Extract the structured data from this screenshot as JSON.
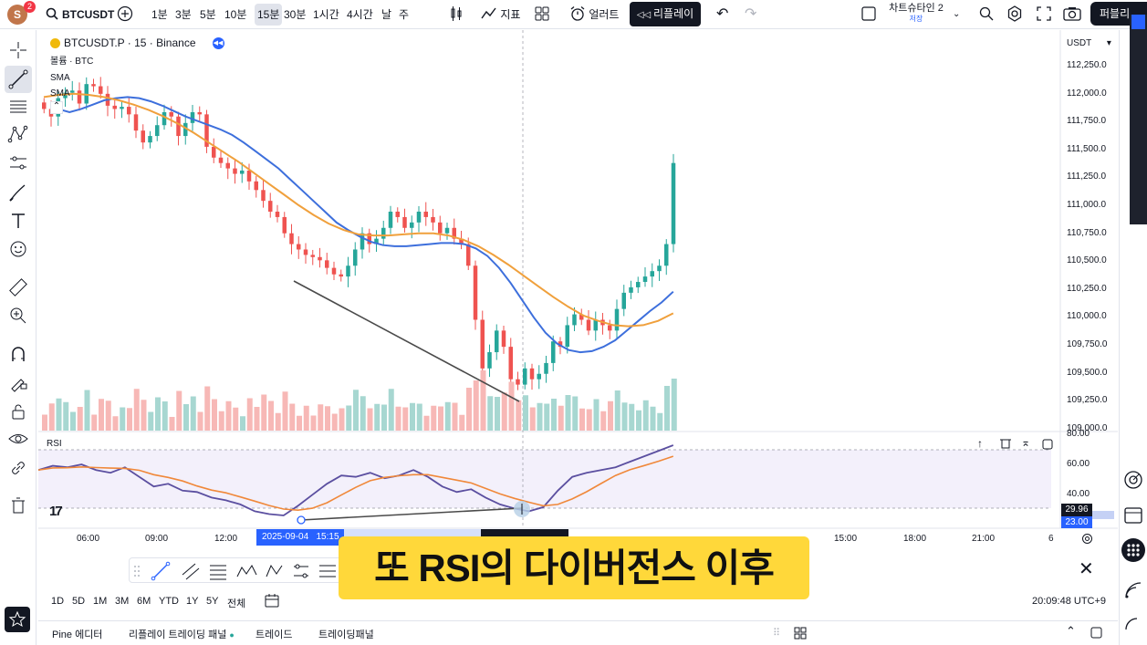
{
  "header": {
    "avatar_letter": "S",
    "notification_count": "2",
    "symbol": "BTCUSDT",
    "intervals": [
      "1분",
      "3분",
      "5분",
      "10분",
      "15분",
      "30분",
      "1시간",
      "4시간",
      "날",
      "주"
    ],
    "selected_interval": "15분",
    "indicators_label": "지표",
    "alert_label": "얼러트",
    "replay_label": "리플레이",
    "layout_name": "차트슈타인 2",
    "layout_sub": "저장",
    "publish_label": "퍼블리"
  },
  "chart": {
    "title": "BTCUSDT.P · 15 · Binance",
    "volume_legend": "볼륨 · BTC",
    "sma1_legend": "SMA",
    "sma2_legend": "SMA",
    "currency": "USDT",
    "price_ticks": [
      "112,250.0",
      "112,000.0",
      "111,750.0",
      "111,500.0",
      "111,250.0",
      "111,000.0",
      "110,750.0",
      "110,500.0",
      "110,250.0",
      "110,000.0",
      "109,750.0",
      "109,500.0",
      "109,250.0",
      "109,000.0"
    ],
    "rsi_label": "RSI",
    "rsi_ticks": [
      "80.00",
      "60.00",
      "40.00"
    ],
    "rsi_value": "29.96",
    "rsi_low": "23.00",
    "time_labels": [
      "06:00",
      "09:00",
      "12:00",
      "15:00",
      "18:00",
      "21:00",
      "6"
    ],
    "cursor_date": "2025-09-04",
    "cursor_time": "15:15",
    "accent_blue": "#2962ff",
    "bull_color": "#26a69a",
    "bear_color": "#ef5350",
    "sma_fast_color": "#3d6fdc",
    "sma_slow_color": "#f0a03c",
    "rsi_line_color": "#5b4fa0",
    "rsi_ma_color": "#f0883a"
  },
  "ranges": [
    "1D",
    "5D",
    "1M",
    "3M",
    "6M",
    "YTD",
    "1Y",
    "5Y",
    "전체"
  ],
  "clock": "20:09:48 UTC+9",
  "bottom": {
    "pine": "Pine 에디터",
    "replay_panel": "리플레이 트레이딩 패널",
    "trade": "트레이드",
    "trading_panel": "트레이딩패널"
  },
  "subtitle": "또 RSI의 다이버전스 이후",
  "chart_data": {
    "type": "candlestick",
    "symbol": "BTCUSDT.P",
    "interval": "15",
    "exchange": "Binance",
    "ylim": [
      109000,
      112300
    ],
    "rsi_ylim": [
      23,
      80
    ],
    "ohlc_close": [
      111950,
      111880,
      112050,
      112100,
      112120,
      112000,
      112180,
      112160,
      112090,
      111980,
      111950,
      111970,
      111900,
      111750,
      111640,
      111700,
      111800,
      111920,
      111880,
      111700,
      111820,
      111920,
      111900,
      111600,
      111500,
      111450,
      111400,
      111350,
      111380,
      111280,
      111200,
      111100,
      111000,
      110950,
      110800,
      110700,
      110650,
      110600,
      110580,
      110550,
      110480,
      110420,
      110400,
      110500,
      110650,
      110800,
      110700,
      110750,
      110850,
      111000,
      110950,
      110850,
      110900,
      111000,
      110950,
      110900,
      110800,
      110850,
      110750,
      110700,
      110500,
      110000,
      109550,
      109700,
      109900,
      109750,
      109450,
      109400,
      109550,
      109450,
      109500,
      109600,
      109800,
      109750,
      109950,
      110050,
      110000,
      109900,
      110000,
      109950,
      109900,
      110100,
      110250,
      110300,
      110350,
      110400,
      110450,
      110500,
      110700,
      111450
    ],
    "sma_fast": [
      111950,
      111920,
      111950,
      111990,
      112030,
      112050,
      112060,
      112050,
      112020,
      111980,
      111930,
      111880,
      111840,
      111800,
      111760,
      111710,
      111640,
      111560,
      111480,
      111400,
      111300,
      111200,
      111100,
      111000,
      110900,
      110830,
      110770,
      110720,
      110690,
      110680,
      110680,
      110690,
      110700,
      110710,
      110710,
      110700,
      110660,
      110590,
      110480,
      110340,
      110180,
      110020,
      109880,
      109780,
      109720,
      109700,
      109710,
      109750,
      109810,
      109900,
      109990,
      110080,
      110160,
      110260
    ],
    "sma_slow": [
      112060,
      112080,
      112090,
      112080,
      112060,
      112030,
      111990,
      111940,
      111880,
      111810,
      111730,
      111640,
      111550,
      111460,
      111360,
      111260,
      111160,
      111060,
      110970,
      110890,
      110830,
      110790,
      110780,
      110780,
      110790,
      110800,
      110800,
      110780,
      110740,
      110680,
      110600,
      110510,
      110410,
      110310,
      110210,
      110120,
      110040,
      109990,
      109950,
      109940,
      109950,
      109990,
      110060
    ],
    "rsi": [
      60,
      63,
      62,
      64,
      60,
      58,
      62,
      55,
      48,
      50,
      45,
      44,
      40,
      38,
      35,
      30,
      28,
      27,
      34,
      42,
      50,
      56,
      55,
      58,
      54,
      56,
      60,
      55,
      48,
      44,
      46,
      40,
      35,
      32,
      30,
      33,
      45,
      55,
      58,
      60,
      62,
      66,
      70,
      74,
      78
    ],
    "annotations": [
      "divergence trendline on price (falling lows)",
      "divergence trendline on RSI (rising lows)"
    ]
  }
}
